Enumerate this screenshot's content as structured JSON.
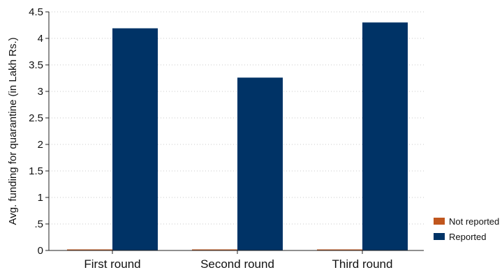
{
  "chart_data": {
    "type": "bar",
    "categories": [
      "First round",
      "Second round",
      "Third round"
    ],
    "series": [
      {
        "name": "Not reported",
        "color": "#c0561e",
        "values": [
          0.02,
          0.02,
          0.01
        ]
      },
      {
        "name": "Reported",
        "color": "#003366",
        "values": [
          4.19,
          3.26,
          4.3
        ]
      }
    ],
    "ylabel": "Avg. funding for quarantine (in Lakh Rs.)",
    "ylim": [
      0,
      4.5
    ],
    "yticks": [
      0,
      0.5,
      1,
      1.5,
      2,
      2.5,
      3,
      3.5,
      4,
      4.5
    ],
    "ytick_labels": [
      "0",
      ".5",
      "1",
      "1.5",
      "2",
      "2.5",
      "3",
      "3.5",
      "4",
      "4.5"
    ],
    "grid": true,
    "legend_position": "bottom-right"
  }
}
